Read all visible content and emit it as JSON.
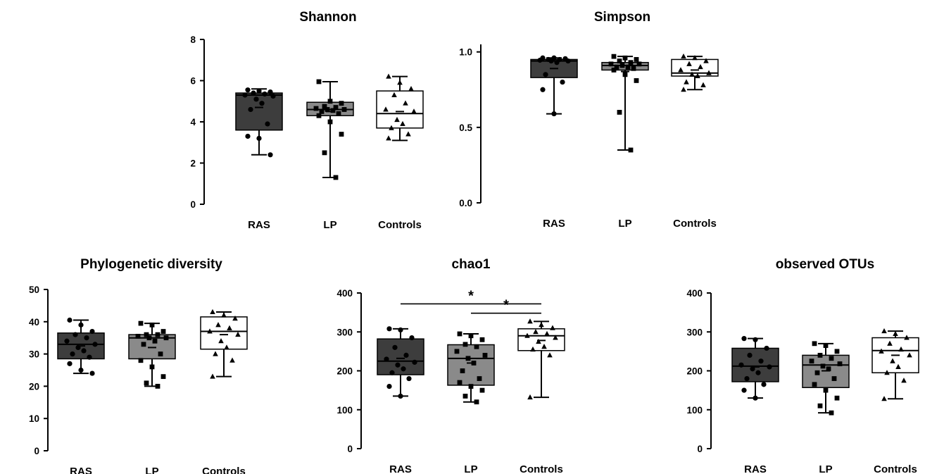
{
  "colors": {
    "RAS": "#3d3d3d",
    "LP": "#8a8a8a",
    "Controls": "#ffffff",
    "stroke": "#000000"
  },
  "chart_data": [
    {
      "type": "box",
      "title": "Shannon",
      "categories": [
        "RAS",
        "LP",
        "Controls"
      ],
      "ylim": [
        0,
        8
      ],
      "yticks": [
        0,
        2,
        4,
        6,
        8
      ],
      "tick_labels": [
        "0",
        "2",
        "4",
        "6",
        "8"
      ],
      "boxes": [
        {
          "min": 2.4,
          "q1": 3.6,
          "median": 5.3,
          "q3": 5.4,
          "max": 5.6,
          "mean": 4.7,
          "points": [
            5.55,
            5.5,
            5.45,
            5.4,
            5.35,
            5.3,
            5.25,
            5.1,
            4.9,
            4.6,
            3.9,
            3.3,
            3.2,
            2.4
          ]
        },
        {
          "min": 1.3,
          "q1": 4.3,
          "median": 4.6,
          "q3": 4.95,
          "max": 5.95,
          "mean": 4.5,
          "points": [
            5.95,
            5.0,
            4.9,
            4.75,
            4.7,
            4.65,
            4.6,
            4.6,
            4.55,
            4.5,
            4.4,
            4.3,
            4.0,
            3.4,
            2.5,
            1.3
          ]
        },
        {
          "min": 3.1,
          "q1": 3.7,
          "median": 4.4,
          "q3": 5.5,
          "max": 6.2,
          "mean": 4.5,
          "points": [
            6.2,
            5.9,
            5.6,
            5.3,
            4.9,
            4.6,
            4.5,
            4.1,
            3.9,
            3.7,
            3.4,
            3.2
          ]
        }
      ]
    },
    {
      "type": "box",
      "title": "Simpson",
      "categories": [
        "RAS",
        "LP",
        "Controls"
      ],
      "ylim": [
        0,
        1.05
      ],
      "yticks": [
        0,
        0.5,
        1.0
      ],
      "tick_labels": [
        "0.0",
        "0.5",
        "1.0"
      ],
      "boxes": [
        {
          "min": 0.59,
          "q1": 0.83,
          "median": 0.94,
          "q3": 0.95,
          "max": 0.96,
          "mean": 0.89,
          "points": [
            0.96,
            0.96,
            0.955,
            0.95,
            0.95,
            0.945,
            0.94,
            0.94,
            0.93,
            0.85,
            0.8,
            0.75,
            0.59
          ]
        },
        {
          "min": 0.35,
          "q1": 0.88,
          "median": 0.91,
          "q3": 0.93,
          "max": 0.97,
          "mean": 0.87,
          "points": [
            0.97,
            0.96,
            0.95,
            0.94,
            0.93,
            0.92,
            0.92,
            0.91,
            0.9,
            0.9,
            0.89,
            0.88,
            0.85,
            0.81,
            0.6,
            0.35
          ]
        },
        {
          "min": 0.75,
          "q1": 0.84,
          "median": 0.86,
          "q3": 0.95,
          "max": 0.97,
          "mean": 0.88,
          "points": [
            0.97,
            0.96,
            0.94,
            0.92,
            0.9,
            0.88,
            0.86,
            0.85,
            0.84,
            0.8,
            0.78,
            0.75
          ]
        }
      ]
    },
    {
      "type": "box",
      "title": "Phylogenetic diversity",
      "categories": [
        "RAS",
        "LP",
        "Controls"
      ],
      "ylim": [
        0,
        50
      ],
      "yticks": [
        0,
        10,
        20,
        30,
        40,
        50
      ],
      "tick_labels": [
        "0",
        "10",
        "20",
        "30",
        "40",
        "50"
      ],
      "boxes": [
        {
          "min": 24,
          "q1": 28.5,
          "median": 33,
          "q3": 36.5,
          "max": 40.5,
          "mean": 32.5,
          "points": [
            40.5,
            39,
            37,
            36,
            35,
            34,
            33,
            32,
            31,
            30,
            29,
            27,
            25,
            24
          ]
        },
        {
          "min": 20,
          "q1": 28.5,
          "median": 35,
          "q3": 36,
          "max": 39.5,
          "mean": 32,
          "points": [
            39.5,
            39,
            37,
            36,
            36,
            35.5,
            35,
            35,
            34,
            33,
            30,
            28,
            26,
            23,
            21,
            20
          ]
        },
        {
          "min": 23,
          "q1": 31.5,
          "median": 37,
          "q3": 41.5,
          "max": 43,
          "mean": 36,
          "points": [
            43,
            42,
            41,
            39,
            38,
            37,
            36,
            34,
            32,
            30,
            28,
            23
          ]
        }
      ]
    },
    {
      "type": "box",
      "title": "chao1",
      "categories": [
        "RAS",
        "LP",
        "Controls"
      ],
      "ylim": [
        0,
        400
      ],
      "yticks": [
        0,
        100,
        200,
        300,
        400
      ],
      "tick_labels": [
        "0",
        "100",
        "200",
        "300",
        "400"
      ],
      "significance": [
        {
          "from": "RAS",
          "to": "Controls",
          "label": "*",
          "y": 372
        },
        {
          "from": "LP",
          "to": "Controls",
          "label": "*",
          "y": 348
        }
      ],
      "boxes": [
        {
          "min": 135,
          "q1": 190,
          "median": 225,
          "q3": 282,
          "max": 308,
          "mean": 232,
          "points": [
            308,
            305,
            285,
            260,
            240,
            230,
            222,
            215,
            205,
            195,
            180,
            160,
            135
          ]
        },
        {
          "min": 120,
          "q1": 163,
          "median": 232,
          "q3": 267,
          "max": 295,
          "mean": 220,
          "points": [
            295,
            290,
            280,
            268,
            262,
            250,
            240,
            232,
            220,
            200,
            180,
            170,
            160,
            150,
            135,
            120
          ]
        },
        {
          "min": 132,
          "q1": 252,
          "median": 290,
          "q3": 308,
          "max": 327,
          "mean": 278,
          "points": [
            327,
            318,
            310,
            300,
            295,
            290,
            285,
            275,
            262,
            255,
            240,
            132
          ]
        }
      ]
    },
    {
      "type": "box",
      "title": "observed OTUs",
      "categories": [
        "RAS",
        "LP",
        "Controls"
      ],
      "ylim": [
        0,
        400
      ],
      "yticks": [
        0,
        100,
        200,
        300,
        400
      ],
      "tick_labels": [
        "0",
        "100",
        "200",
        "300",
        "400"
      ],
      "boxes": [
        {
          "min": 130,
          "q1": 172,
          "median": 212,
          "q3": 258,
          "max": 283,
          "mean": 210,
          "points": [
            283,
            280,
            258,
            240,
            225,
            215,
            210,
            205,
            195,
            180,
            165,
            150,
            130
          ]
        },
        {
          "min": 92,
          "q1": 157,
          "median": 215,
          "q3": 240,
          "max": 270,
          "mean": 200,
          "points": [
            270,
            265,
            250,
            240,
            232,
            225,
            218,
            212,
            205,
            195,
            180,
            165,
            150,
            130,
            110,
            92
          ]
        },
        {
          "min": 128,
          "q1": 195,
          "median": 252,
          "q3": 285,
          "max": 302,
          "mean": 240,
          "points": [
            302,
            295,
            285,
            270,
            255,
            250,
            240,
            225,
            210,
            195,
            175,
            128
          ]
        }
      ]
    }
  ]
}
